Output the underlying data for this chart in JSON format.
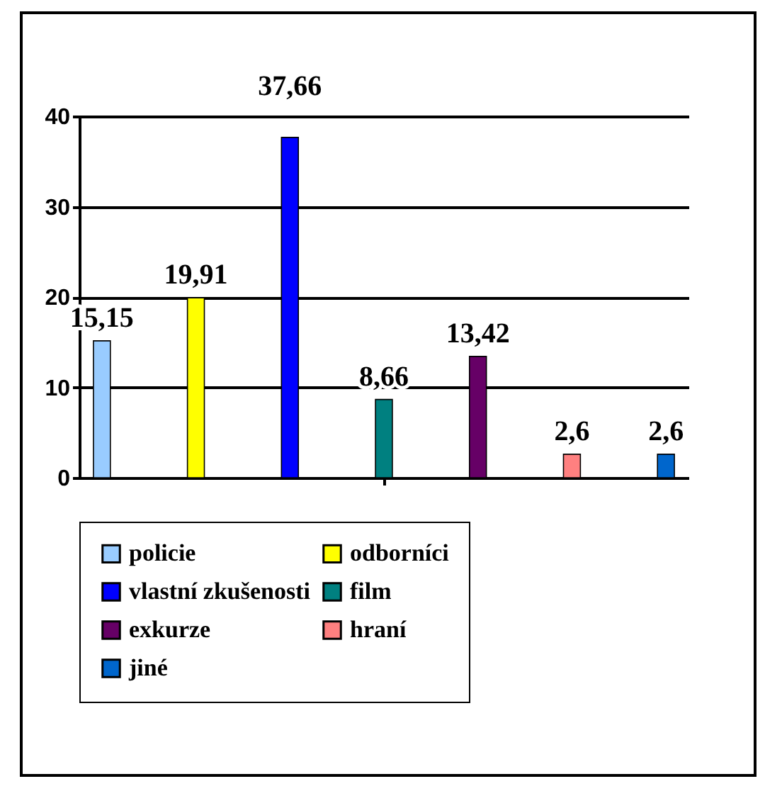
{
  "chart_data": {
    "type": "bar",
    "categories": [
      null
    ],
    "series": [
      {
        "name": "policie",
        "color": "#99ccff",
        "values": [
          15.15
        ],
        "value_labels": [
          "15,15"
        ]
      },
      {
        "name": "odborníci",
        "color": "#ffff00",
        "values": [
          19.91
        ],
        "value_labels": [
          "19,91"
        ]
      },
      {
        "name": "vlastní zkušenosti",
        "color": "#0000ff",
        "values": [
          37.66
        ],
        "value_labels": [
          "37,66"
        ]
      },
      {
        "name": "film",
        "color": "#008080",
        "values": [
          8.66
        ],
        "value_labels": [
          "8,66"
        ]
      },
      {
        "name": "exkurze",
        "color": "#660066",
        "values": [
          13.42
        ],
        "value_labels": [
          "13,42"
        ]
      },
      {
        "name": "hraní",
        "color": "#ff8080",
        "values": [
          2.6
        ],
        "value_labels": [
          "2,6"
        ]
      },
      {
        "name": "jiné",
        "color": "#0066cc",
        "values": [
          2.6
        ],
        "value_labels": [
          "2,6"
        ]
      }
    ],
    "ylim": [
      0,
      40
    ],
    "yticks": [
      0,
      10,
      20,
      30,
      40
    ],
    "grid": "y",
    "legend": "bottom",
    "tick_labels": "y"
  }
}
